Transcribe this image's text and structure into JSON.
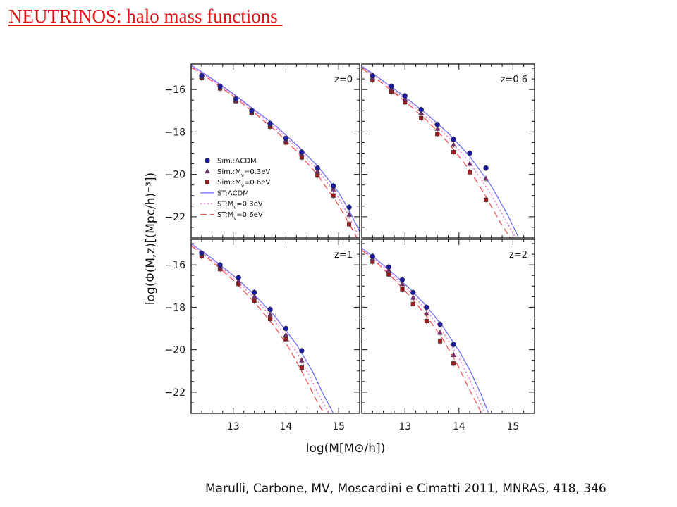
{
  "slide": {
    "title": "NEUTRINOS: halo mass functions ",
    "citation": "Marulli, Carbone, MV, Moscardini e Cimatti 2011, MNRAS, 418, 346"
  },
  "colors": {
    "title": "#e01010",
    "lcdm": "#1a1aa0",
    "nu03": "#7a2a70",
    "nu06": "#9a1a1a",
    "st_lcdm": "#6f6ff5",
    "st_nu03": "#f060c8",
    "st_nu06": "#f05050"
  },
  "chart_data": {
    "type": "scatter",
    "layout": "2x2 panels, shared axes",
    "xlabel": "log(M[M⊙/h])",
    "ylabel": "log(Φ(M,z)[(Mpc/h)⁻³])",
    "xlim": [
      12.2,
      15.4
    ],
    "ylim": [
      -23.0,
      -14.8
    ],
    "xticks": [
      13,
      14,
      15
    ],
    "yticks": [
      -16,
      -18,
      -20,
      -22
    ],
    "legend": {
      "placement": "left-middle of top-left panel",
      "entries": [
        {
          "label": "Sim.:ΛCDM",
          "kind": "marker",
          "marker": "circle",
          "color_key": "lcdm"
        },
        {
          "label": "Sim.:M",
          "sub": "ν",
          "suffix": "=0.3eV",
          "kind": "marker",
          "marker": "triangle",
          "color_key": "nu03"
        },
        {
          "label": "Sim.:M",
          "sub": "ν",
          "suffix": "=0.6eV",
          "kind": "marker",
          "marker": "square",
          "color_key": "nu06"
        },
        {
          "label": "ST:ΛCDM",
          "kind": "line",
          "dash": "",
          "color_key": "st_lcdm"
        },
        {
          "label": "ST:M",
          "sub": "ν",
          "suffix": "=0.3eV",
          "kind": "line",
          "dash": "2,3",
          "color_key": "st_nu03"
        },
        {
          "label": "ST:M",
          "sub": "ν",
          "suffix": "=0.6eV",
          "kind": "line",
          "dash": "9,5",
          "color_key": "st_nu06"
        }
      ]
    },
    "panels": [
      {
        "label": "z=0",
        "sim": [
          {
            "name": "Sim.:ΛCDM",
            "x": [
              12.4,
              12.75,
              13.05,
              13.35,
              13.7,
              14.0,
              14.3,
              14.6,
              14.9,
              15.2
            ],
            "y": [
              -15.35,
              -15.85,
              -16.45,
              -17.0,
              -17.6,
              -18.3,
              -18.95,
              -19.7,
              -20.55,
              -21.55
            ]
          },
          {
            "name": "Sim.:Mν=0.3eV",
            "x": [
              12.4,
              12.75,
              13.05,
              13.35,
              13.7,
              14.0,
              14.3,
              14.6,
              14.9,
              15.2
            ],
            "y": [
              -15.4,
              -15.9,
              -16.5,
              -17.05,
              -17.65,
              -18.4,
              -19.05,
              -19.85,
              -20.7,
              -21.9
            ]
          },
          {
            "name": "Sim.:Mν=0.6eV",
            "x": [
              12.4,
              12.75,
              13.05,
              13.35,
              13.7,
              14.0,
              14.3,
              14.6,
              14.9,
              15.2
            ],
            "y": [
              -15.45,
              -15.95,
              -16.55,
              -17.1,
              -17.75,
              -18.5,
              -19.2,
              -20.05,
              -21.0,
              -22.35
            ]
          }
        ],
        "st": [
          {
            "name": "ST:ΛCDM",
            "x": [
              12.2,
              12.6,
              13.0,
              13.4,
              13.8,
              14.2,
              14.6,
              15.0,
              15.2,
              15.4
            ],
            "y": [
              -14.85,
              -15.5,
              -16.2,
              -16.95,
              -17.7,
              -18.6,
              -19.6,
              -20.85,
              -21.7,
              -22.7
            ]
          },
          {
            "name": "ST:Mν=0.3eV",
            "x": [
              12.2,
              12.6,
              13.0,
              13.4,
              13.8,
              14.2,
              14.6,
              15.0,
              15.2,
              15.4
            ],
            "y": [
              -14.9,
              -15.55,
              -16.25,
              -17.0,
              -17.8,
              -18.72,
              -19.78,
              -21.1,
              -22.0,
              -23.0
            ]
          },
          {
            "name": "ST:Mν=0.6eV",
            "x": [
              12.2,
              12.6,
              13.0,
              13.4,
              13.8,
              14.2,
              14.6,
              15.0,
              15.15,
              15.35
            ],
            "y": [
              -14.95,
              -15.6,
              -16.32,
              -17.1,
              -17.92,
              -18.9,
              -20.02,
              -21.45,
              -22.1,
              -23.0
            ]
          }
        ]
      },
      {
        "label": "z=0.6",
        "sim": [
          {
            "name": "Sim.:ΛCDM",
            "x": [
              12.4,
              12.75,
              13.0,
              13.3,
              13.6,
              13.9,
              14.2,
              14.5
            ],
            "y": [
              -15.35,
              -15.85,
              -16.3,
              -16.95,
              -17.65,
              -18.35,
              -19.0,
              -19.7
            ]
          },
          {
            "name": "Sim.:Mν=0.3eV",
            "x": [
              12.4,
              12.75,
              13.0,
              13.3,
              13.6,
              13.9,
              14.2,
              14.5
            ],
            "y": [
              -15.45,
              -15.95,
              -16.45,
              -17.1,
              -17.85,
              -18.6,
              -19.5,
              -20.2
            ]
          },
          {
            "name": "Sim.:Mν=0.6eV",
            "x": [
              12.4,
              12.75,
              13.0,
              13.3,
              13.6,
              13.9,
              14.2,
              14.5
            ],
            "y": [
              -15.55,
              -16.1,
              -16.6,
              -17.35,
              -18.1,
              -18.95,
              -19.9,
              -21.2
            ]
          }
        ],
        "st": [
          {
            "name": "ST:ΛCDM",
            "x": [
              12.2,
              12.6,
              13.0,
              13.4,
              13.8,
              14.2,
              14.6,
              14.9,
              15.1
            ],
            "y": [
              -14.9,
              -15.6,
              -16.35,
              -17.15,
              -18.05,
              -19.15,
              -20.55,
              -21.9,
              -22.95
            ]
          },
          {
            "name": "ST:Mν=0.3eV",
            "x": [
              12.2,
              12.6,
              13.0,
              13.4,
              13.8,
              14.2,
              14.6,
              14.85,
              15.05
            ],
            "y": [
              -14.95,
              -15.68,
              -16.45,
              -17.3,
              -18.25,
              -19.45,
              -20.95,
              -22.1,
              -23.0
            ]
          },
          {
            "name": "ST:Mν=0.6eV",
            "x": [
              12.2,
              12.6,
              13.0,
              13.4,
              13.8,
              14.2,
              14.5,
              14.75,
              14.95
            ],
            "y": [
              -15.0,
              -15.75,
              -16.55,
              -17.45,
              -18.5,
              -19.8,
              -21.05,
              -22.2,
              -23.0
            ]
          }
        ]
      },
      {
        "label": "z=1",
        "sim": [
          {
            "name": "Sim.:ΛCDM",
            "x": [
              12.4,
              12.75,
              13.1,
              13.4,
              13.7,
              14.0,
              14.3
            ],
            "y": [
              -15.45,
              -16.0,
              -16.6,
              -17.3,
              -18.1,
              -19.0,
              -20.05
            ]
          },
          {
            "name": "Sim.:Mν=0.3eV",
            "x": [
              12.4,
              12.75,
              13.1,
              13.4,
              13.7,
              14.0,
              14.3
            ],
            "y": [
              -15.5,
              -16.1,
              -16.75,
              -17.5,
              -18.35,
              -19.3,
              -20.5
            ]
          },
          {
            "name": "Sim.:Mν=0.6eV",
            "x": [
              12.4,
              12.75,
              13.1,
              13.4,
              13.7,
              14.0,
              14.3
            ],
            "y": [
              -15.6,
              -16.2,
              -16.9,
              -17.7,
              -18.55,
              -19.5,
              -20.85
            ]
          }
        ],
        "st": [
          {
            "name": "ST:ΛCDM",
            "x": [
              12.2,
              12.6,
              13.0,
              13.4,
              13.8,
              14.2,
              14.5,
              14.7,
              14.9
            ],
            "y": [
              -15.0,
              -15.7,
              -16.5,
              -17.4,
              -18.45,
              -19.75,
              -21.0,
              -22.05,
              -23.0
            ]
          },
          {
            "name": "ST:Mν=0.3eV",
            "x": [
              12.2,
              12.6,
              13.0,
              13.4,
              13.8,
              14.2,
              14.45,
              14.65,
              14.82
            ],
            "y": [
              -15.05,
              -15.78,
              -16.6,
              -17.55,
              -18.68,
              -20.1,
              -21.25,
              -22.25,
              -23.0
            ]
          },
          {
            "name": "ST:Mν=0.6eV",
            "x": [
              12.2,
              12.6,
              13.0,
              13.4,
              13.8,
              14.1,
              14.35,
              14.55,
              14.72
            ],
            "y": [
              -15.1,
              -15.85,
              -16.72,
              -17.75,
              -18.95,
              -20.1,
              -21.25,
              -22.25,
              -23.0
            ]
          }
        ]
      },
      {
        "label": "z=2",
        "sim": [
          {
            "name": "Sim.:ΛCDM",
            "x": [
              12.4,
              12.7,
              12.95,
              13.15,
              13.4,
              13.65,
              13.9
            ],
            "y": [
              -15.6,
              -16.1,
              -16.7,
              -17.3,
              -18.0,
              -18.8,
              -19.75
            ]
          },
          {
            "name": "Sim.:Mν=0.3eV",
            "x": [
              12.4,
              12.7,
              12.95,
              13.15,
              13.4,
              13.65,
              13.9
            ],
            "y": [
              -15.7,
              -16.25,
              -16.9,
              -17.55,
              -18.3,
              -19.2,
              -20.25
            ]
          },
          {
            "name": "Sim.:Mν=0.6eV",
            "x": [
              12.4,
              12.7,
              12.95,
              13.15,
              13.4,
              13.65,
              13.9
            ],
            "y": [
              -15.85,
              -16.45,
              -17.15,
              -17.85,
              -18.65,
              -19.6,
              -20.65
            ]
          }
        ],
        "st": [
          {
            "name": "ST:ΛCDM",
            "x": [
              12.2,
              12.5,
              12.8,
              13.1,
              13.4,
              13.7,
              14.0,
              14.2,
              14.4,
              14.55
            ],
            "y": [
              -15.2,
              -15.8,
              -16.45,
              -17.15,
              -17.95,
              -18.9,
              -20.05,
              -20.95,
              -22.05,
              -23.0
            ]
          },
          {
            "name": "ST:Mν=0.3eV",
            "x": [
              12.2,
              12.5,
              12.8,
              13.1,
              13.4,
              13.7,
              14.0,
              14.2,
              14.35,
              14.48
            ],
            "y": [
              -15.25,
              -15.88,
              -16.55,
              -17.3,
              -18.15,
              -19.15,
              -20.4,
              -21.4,
              -22.25,
              -23.0
            ]
          },
          {
            "name": "ST:Mν=0.6eV",
            "x": [
              12.2,
              12.5,
              12.8,
              13.1,
              13.4,
              13.7,
              13.95,
              14.15,
              14.3,
              14.42
            ],
            "y": [
              -15.3,
              -15.95,
              -16.68,
              -17.5,
              -18.42,
              -19.5,
              -20.6,
              -21.65,
              -22.4,
              -23.0
            ]
          }
        ]
      }
    ]
  }
}
